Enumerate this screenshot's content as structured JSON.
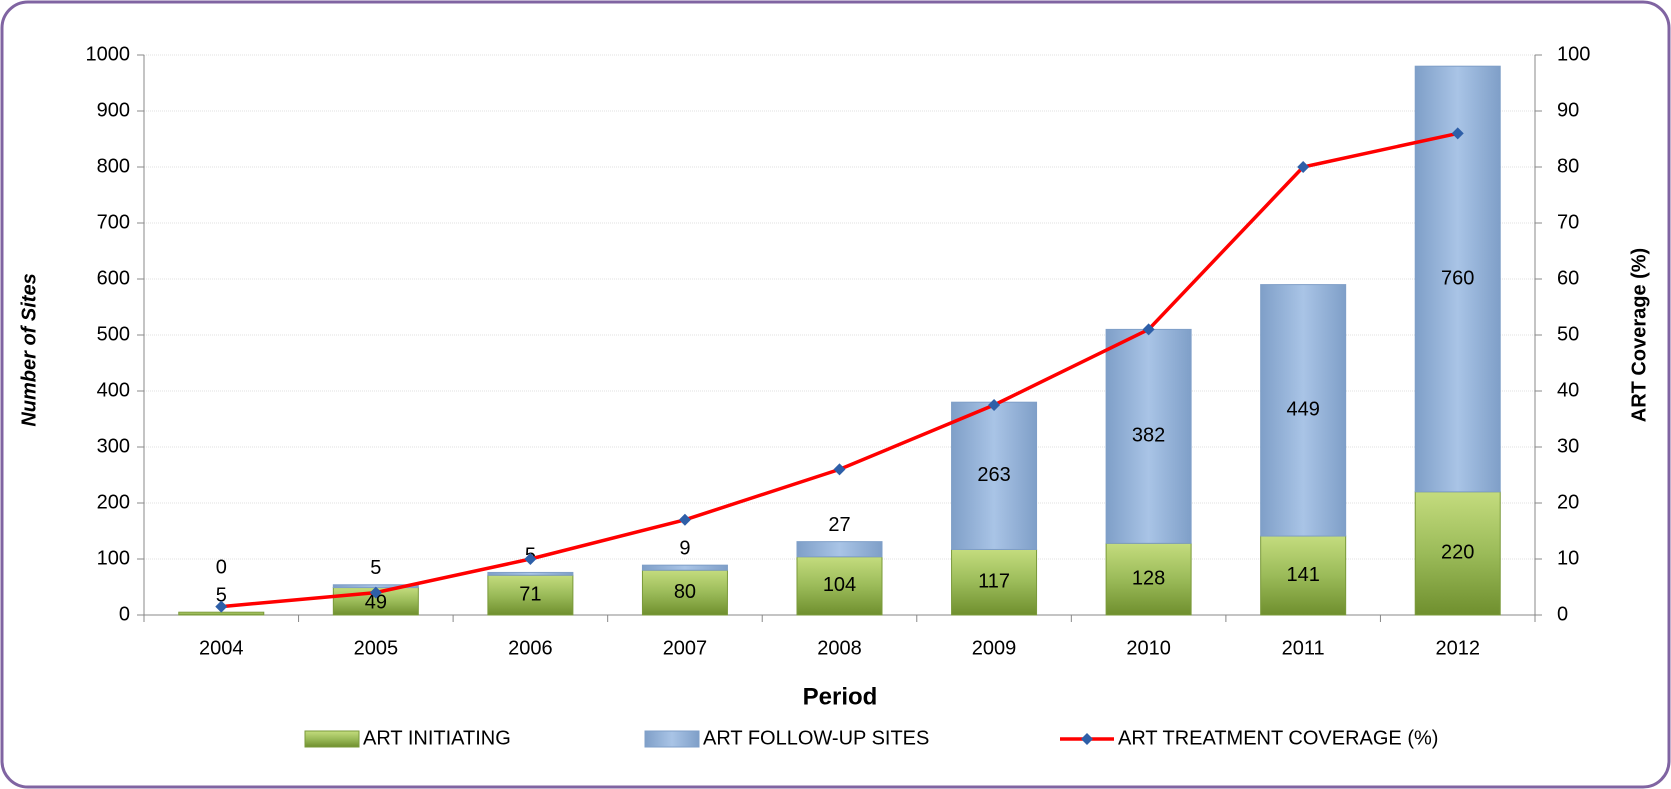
{
  "chart_data": {
    "type": "bar",
    "stacked": true,
    "x_label": "Period",
    "y_label": "Number of Sites",
    "y2_label": "ART Coverage (%)",
    "categories": [
      "2004",
      "2005",
      "2006",
      "2007",
      "2008",
      "2009",
      "2010",
      "2011",
      "2012"
    ],
    "series": [
      {
        "name": "ART INITIATING",
        "type": "bar",
        "color": "#9bbb59",
        "values": [
          5,
          49,
          71,
          80,
          104,
          117,
          128,
          141,
          220
        ]
      },
      {
        "name": "ART FOLLOW-UP SITES",
        "type": "bar",
        "color": "#95b3d7",
        "values": [
          0,
          5,
          5,
          9,
          27,
          263,
          382,
          449,
          760
        ]
      },
      {
        "name": "ART TREATMENT COVERAGE (%)",
        "type": "line",
        "axis": "y2",
        "color": "#ff0000",
        "marker_color": "#2e5fa8",
        "values": [
          1.5,
          4,
          10,
          17,
          26,
          37.5,
          51,
          80,
          86
        ]
      }
    ],
    "ylim": [
      0,
      1000
    ],
    "yticks": [
      0,
      100,
      200,
      300,
      400,
      500,
      600,
      700,
      800,
      900,
      1000
    ],
    "y2lim": [
      0,
      100
    ],
    "y2ticks": [
      0,
      10,
      20,
      30,
      40,
      50,
      60,
      70,
      80,
      90,
      100
    ],
    "grid": true,
    "legend": "bottom"
  }
}
